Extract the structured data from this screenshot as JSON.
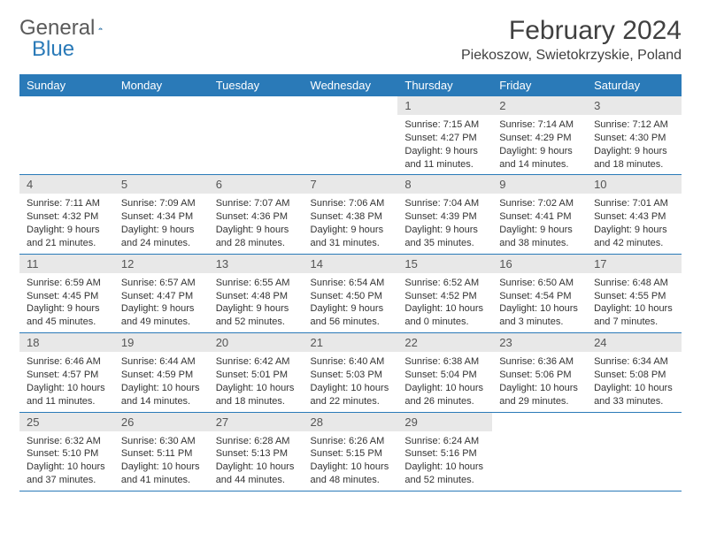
{
  "logo": {
    "text1": "General",
    "text2": "Blue"
  },
  "title": "February 2024",
  "location": "Piekoszow, Swietokrzyskie, Poland",
  "colors": {
    "header_bg": "#2a7ab8",
    "daynum_bg": "#e8e8e8",
    "border": "#2a7ab8"
  },
  "weekdays": [
    "Sunday",
    "Monday",
    "Tuesday",
    "Wednesday",
    "Thursday",
    "Friday",
    "Saturday"
  ],
  "weeks": [
    [
      null,
      null,
      null,
      null,
      {
        "n": "1",
        "sr": "Sunrise: 7:15 AM",
        "ss": "Sunset: 4:27 PM",
        "d1": "Daylight: 9 hours",
        "d2": "and 11 minutes."
      },
      {
        "n": "2",
        "sr": "Sunrise: 7:14 AM",
        "ss": "Sunset: 4:29 PM",
        "d1": "Daylight: 9 hours",
        "d2": "and 14 minutes."
      },
      {
        "n": "3",
        "sr": "Sunrise: 7:12 AM",
        "ss": "Sunset: 4:30 PM",
        "d1": "Daylight: 9 hours",
        "d2": "and 18 minutes."
      }
    ],
    [
      {
        "n": "4",
        "sr": "Sunrise: 7:11 AM",
        "ss": "Sunset: 4:32 PM",
        "d1": "Daylight: 9 hours",
        "d2": "and 21 minutes."
      },
      {
        "n": "5",
        "sr": "Sunrise: 7:09 AM",
        "ss": "Sunset: 4:34 PM",
        "d1": "Daylight: 9 hours",
        "d2": "and 24 minutes."
      },
      {
        "n": "6",
        "sr": "Sunrise: 7:07 AM",
        "ss": "Sunset: 4:36 PM",
        "d1": "Daylight: 9 hours",
        "d2": "and 28 minutes."
      },
      {
        "n": "7",
        "sr": "Sunrise: 7:06 AM",
        "ss": "Sunset: 4:38 PM",
        "d1": "Daylight: 9 hours",
        "d2": "and 31 minutes."
      },
      {
        "n": "8",
        "sr": "Sunrise: 7:04 AM",
        "ss": "Sunset: 4:39 PM",
        "d1": "Daylight: 9 hours",
        "d2": "and 35 minutes."
      },
      {
        "n": "9",
        "sr": "Sunrise: 7:02 AM",
        "ss": "Sunset: 4:41 PM",
        "d1": "Daylight: 9 hours",
        "d2": "and 38 minutes."
      },
      {
        "n": "10",
        "sr": "Sunrise: 7:01 AM",
        "ss": "Sunset: 4:43 PM",
        "d1": "Daylight: 9 hours",
        "d2": "and 42 minutes."
      }
    ],
    [
      {
        "n": "11",
        "sr": "Sunrise: 6:59 AM",
        "ss": "Sunset: 4:45 PM",
        "d1": "Daylight: 9 hours",
        "d2": "and 45 minutes."
      },
      {
        "n": "12",
        "sr": "Sunrise: 6:57 AM",
        "ss": "Sunset: 4:47 PM",
        "d1": "Daylight: 9 hours",
        "d2": "and 49 minutes."
      },
      {
        "n": "13",
        "sr": "Sunrise: 6:55 AM",
        "ss": "Sunset: 4:48 PM",
        "d1": "Daylight: 9 hours",
        "d2": "and 52 minutes."
      },
      {
        "n": "14",
        "sr": "Sunrise: 6:54 AM",
        "ss": "Sunset: 4:50 PM",
        "d1": "Daylight: 9 hours",
        "d2": "and 56 minutes."
      },
      {
        "n": "15",
        "sr": "Sunrise: 6:52 AM",
        "ss": "Sunset: 4:52 PM",
        "d1": "Daylight: 10 hours",
        "d2": "and 0 minutes."
      },
      {
        "n": "16",
        "sr": "Sunrise: 6:50 AM",
        "ss": "Sunset: 4:54 PM",
        "d1": "Daylight: 10 hours",
        "d2": "and 3 minutes."
      },
      {
        "n": "17",
        "sr": "Sunrise: 6:48 AM",
        "ss": "Sunset: 4:55 PM",
        "d1": "Daylight: 10 hours",
        "d2": "and 7 minutes."
      }
    ],
    [
      {
        "n": "18",
        "sr": "Sunrise: 6:46 AM",
        "ss": "Sunset: 4:57 PM",
        "d1": "Daylight: 10 hours",
        "d2": "and 11 minutes."
      },
      {
        "n": "19",
        "sr": "Sunrise: 6:44 AM",
        "ss": "Sunset: 4:59 PM",
        "d1": "Daylight: 10 hours",
        "d2": "and 14 minutes."
      },
      {
        "n": "20",
        "sr": "Sunrise: 6:42 AM",
        "ss": "Sunset: 5:01 PM",
        "d1": "Daylight: 10 hours",
        "d2": "and 18 minutes."
      },
      {
        "n": "21",
        "sr": "Sunrise: 6:40 AM",
        "ss": "Sunset: 5:03 PM",
        "d1": "Daylight: 10 hours",
        "d2": "and 22 minutes."
      },
      {
        "n": "22",
        "sr": "Sunrise: 6:38 AM",
        "ss": "Sunset: 5:04 PM",
        "d1": "Daylight: 10 hours",
        "d2": "and 26 minutes."
      },
      {
        "n": "23",
        "sr": "Sunrise: 6:36 AM",
        "ss": "Sunset: 5:06 PM",
        "d1": "Daylight: 10 hours",
        "d2": "and 29 minutes."
      },
      {
        "n": "24",
        "sr": "Sunrise: 6:34 AM",
        "ss": "Sunset: 5:08 PM",
        "d1": "Daylight: 10 hours",
        "d2": "and 33 minutes."
      }
    ],
    [
      {
        "n": "25",
        "sr": "Sunrise: 6:32 AM",
        "ss": "Sunset: 5:10 PM",
        "d1": "Daylight: 10 hours",
        "d2": "and 37 minutes."
      },
      {
        "n": "26",
        "sr": "Sunrise: 6:30 AM",
        "ss": "Sunset: 5:11 PM",
        "d1": "Daylight: 10 hours",
        "d2": "and 41 minutes."
      },
      {
        "n": "27",
        "sr": "Sunrise: 6:28 AM",
        "ss": "Sunset: 5:13 PM",
        "d1": "Daylight: 10 hours",
        "d2": "and 44 minutes."
      },
      {
        "n": "28",
        "sr": "Sunrise: 6:26 AM",
        "ss": "Sunset: 5:15 PM",
        "d1": "Daylight: 10 hours",
        "d2": "and 48 minutes."
      },
      {
        "n": "29",
        "sr": "Sunrise: 6:24 AM",
        "ss": "Sunset: 5:16 PM",
        "d1": "Daylight: 10 hours",
        "d2": "and 52 minutes."
      },
      null,
      null
    ]
  ]
}
